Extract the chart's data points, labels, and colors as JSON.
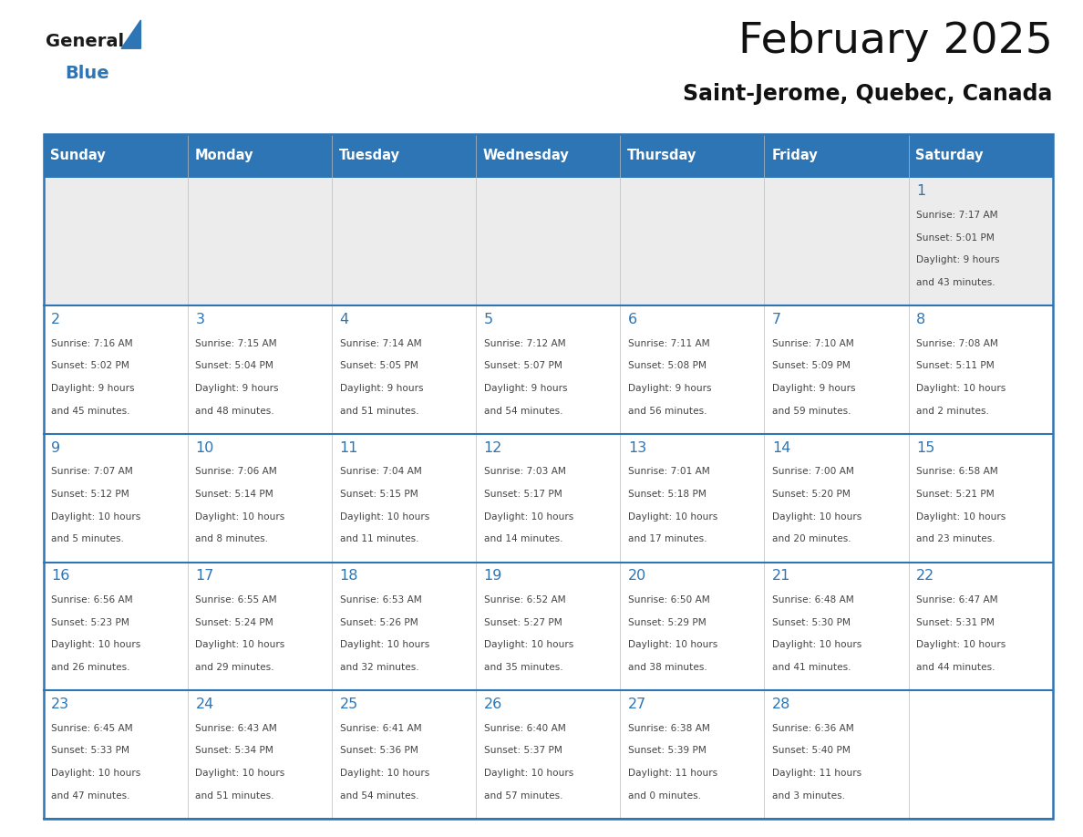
{
  "title": "February 2025",
  "subtitle": "Saint-Jerome, Quebec, Canada",
  "header_bg": "#2e75b6",
  "header_text_color": "#ffffff",
  "cell_bg_row0": "#ececec",
  "cell_bg_other": "#ffffff",
  "day_number_color": "#2e75b6",
  "text_color": "#444444",
  "line_color": "#2e75b6",
  "days_of_week": [
    "Sunday",
    "Monday",
    "Tuesday",
    "Wednesday",
    "Thursday",
    "Friday",
    "Saturday"
  ],
  "calendar_data": [
    [
      {
        "day": null
      },
      {
        "day": null
      },
      {
        "day": null
      },
      {
        "day": null
      },
      {
        "day": null
      },
      {
        "day": null
      },
      {
        "day": 1,
        "sunrise": "7:17 AM",
        "sunset": "5:01 PM",
        "dl1": "9 hours",
        "dl2": "and 43 minutes."
      }
    ],
    [
      {
        "day": 2,
        "sunrise": "7:16 AM",
        "sunset": "5:02 PM",
        "dl1": "9 hours",
        "dl2": "and 45 minutes."
      },
      {
        "day": 3,
        "sunrise": "7:15 AM",
        "sunset": "5:04 PM",
        "dl1": "9 hours",
        "dl2": "and 48 minutes."
      },
      {
        "day": 4,
        "sunrise": "7:14 AM",
        "sunset": "5:05 PM",
        "dl1": "9 hours",
        "dl2": "and 51 minutes."
      },
      {
        "day": 5,
        "sunrise": "7:12 AM",
        "sunset": "5:07 PM",
        "dl1": "9 hours",
        "dl2": "and 54 minutes."
      },
      {
        "day": 6,
        "sunrise": "7:11 AM",
        "sunset": "5:08 PM",
        "dl1": "9 hours",
        "dl2": "and 56 minutes."
      },
      {
        "day": 7,
        "sunrise": "7:10 AM",
        "sunset": "5:09 PM",
        "dl1": "9 hours",
        "dl2": "and 59 minutes."
      },
      {
        "day": 8,
        "sunrise": "7:08 AM",
        "sunset": "5:11 PM",
        "dl1": "10 hours",
        "dl2": "and 2 minutes."
      }
    ],
    [
      {
        "day": 9,
        "sunrise": "7:07 AM",
        "sunset": "5:12 PM",
        "dl1": "10 hours",
        "dl2": "and 5 minutes."
      },
      {
        "day": 10,
        "sunrise": "7:06 AM",
        "sunset": "5:14 PM",
        "dl1": "10 hours",
        "dl2": "and 8 minutes."
      },
      {
        "day": 11,
        "sunrise": "7:04 AM",
        "sunset": "5:15 PM",
        "dl1": "10 hours",
        "dl2": "and 11 minutes."
      },
      {
        "day": 12,
        "sunrise": "7:03 AM",
        "sunset": "5:17 PM",
        "dl1": "10 hours",
        "dl2": "and 14 minutes."
      },
      {
        "day": 13,
        "sunrise": "7:01 AM",
        "sunset": "5:18 PM",
        "dl1": "10 hours",
        "dl2": "and 17 minutes."
      },
      {
        "day": 14,
        "sunrise": "7:00 AM",
        "sunset": "5:20 PM",
        "dl1": "10 hours",
        "dl2": "and 20 minutes."
      },
      {
        "day": 15,
        "sunrise": "6:58 AM",
        "sunset": "5:21 PM",
        "dl1": "10 hours",
        "dl2": "and 23 minutes."
      }
    ],
    [
      {
        "day": 16,
        "sunrise": "6:56 AM",
        "sunset": "5:23 PM",
        "dl1": "10 hours",
        "dl2": "and 26 minutes."
      },
      {
        "day": 17,
        "sunrise": "6:55 AM",
        "sunset": "5:24 PM",
        "dl1": "10 hours",
        "dl2": "and 29 minutes."
      },
      {
        "day": 18,
        "sunrise": "6:53 AM",
        "sunset": "5:26 PM",
        "dl1": "10 hours",
        "dl2": "and 32 minutes."
      },
      {
        "day": 19,
        "sunrise": "6:52 AM",
        "sunset": "5:27 PM",
        "dl1": "10 hours",
        "dl2": "and 35 minutes."
      },
      {
        "day": 20,
        "sunrise": "6:50 AM",
        "sunset": "5:29 PM",
        "dl1": "10 hours",
        "dl2": "and 38 minutes."
      },
      {
        "day": 21,
        "sunrise": "6:48 AM",
        "sunset": "5:30 PM",
        "dl1": "10 hours",
        "dl2": "and 41 minutes."
      },
      {
        "day": 22,
        "sunrise": "6:47 AM",
        "sunset": "5:31 PM",
        "dl1": "10 hours",
        "dl2": "and 44 minutes."
      }
    ],
    [
      {
        "day": 23,
        "sunrise": "6:45 AM",
        "sunset": "5:33 PM",
        "dl1": "10 hours",
        "dl2": "and 47 minutes."
      },
      {
        "day": 24,
        "sunrise": "6:43 AM",
        "sunset": "5:34 PM",
        "dl1": "10 hours",
        "dl2": "and 51 minutes."
      },
      {
        "day": 25,
        "sunrise": "6:41 AM",
        "sunset": "5:36 PM",
        "dl1": "10 hours",
        "dl2": "and 54 minutes."
      },
      {
        "day": 26,
        "sunrise": "6:40 AM",
        "sunset": "5:37 PM",
        "dl1": "10 hours",
        "dl2": "and 57 minutes."
      },
      {
        "day": 27,
        "sunrise": "6:38 AM",
        "sunset": "5:39 PM",
        "dl1": "11 hours",
        "dl2": "and 0 minutes."
      },
      {
        "day": 28,
        "sunrise": "6:36 AM",
        "sunset": "5:40 PM",
        "dl1": "11 hours",
        "dl2": "and 3 minutes."
      },
      {
        "day": null
      }
    ]
  ]
}
